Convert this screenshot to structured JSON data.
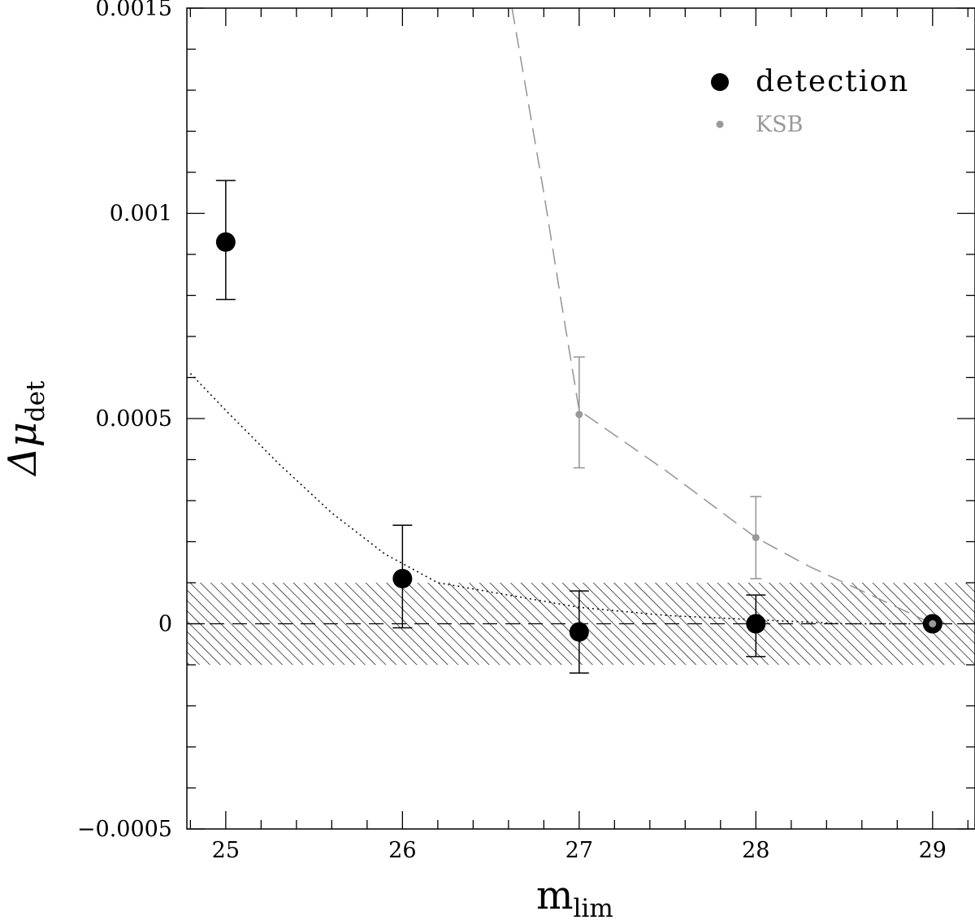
{
  "chart_data": {
    "type": "scatter",
    "xlabel": "m",
    "xlabel_sub": "lim",
    "ylabel": "Δμ",
    "ylabel_sub": "det",
    "xlim": [
      24.78,
      29.24
    ],
    "ylim": [
      -0.0005,
      0.0015
    ],
    "x_ticks": [
      25,
      26,
      27,
      28,
      29
    ],
    "x_tick_labels": [
      "25",
      "26",
      "27",
      "28",
      "29"
    ],
    "x_minor_step": 0.2,
    "y_ticks": [
      -0.0005,
      0,
      0.0005,
      0.001,
      0.0015
    ],
    "y_tick_labels": [
      "−0.0005",
      "0",
      "0.0005",
      "0.001",
      "0.0015"
    ],
    "y_minor_step": 0.0001,
    "grid": false,
    "legend_position": "top-right",
    "colors": {
      "detection": "#000000",
      "ksb": "#999999"
    },
    "series": [
      {
        "name": "detection",
        "marker": "large-filled-circle",
        "points": [
          {
            "x": 25,
            "y": 0.00093,
            "err_low": 0.00079,
            "err_high": 0.00108
          },
          {
            "x": 26,
            "y": 0.00011,
            "err_low": -1e-05,
            "err_high": 0.00024
          },
          {
            "x": 27,
            "y": -2e-05,
            "err_low": -0.00012,
            "err_high": 8e-05
          },
          {
            "x": 28,
            "y": 0.0,
            "err_low": -8e-05,
            "err_high": 7e-05
          },
          {
            "x": 29,
            "y": 0.0,
            "err_low": 0.0,
            "err_high": 0.0
          }
        ]
      },
      {
        "name": "KSB",
        "marker": "small-filled-circle",
        "points": [
          {
            "x": 27,
            "y": 0.00051,
            "err_low": 0.00038,
            "err_high": 0.00065
          },
          {
            "x": 28,
            "y": 0.00021,
            "err_low": 0.00011,
            "err_high": 0.00031
          },
          {
            "x": 29,
            "y": 0.0,
            "err_low": 0.0,
            "err_high": 0.0
          }
        ]
      }
    ],
    "curves": [
      {
        "style": "dashed-gray",
        "points": [
          [
            26.62,
            0.0015
          ],
          [
            26.8,
            0.00105
          ],
          [
            26.9,
            0.00078
          ],
          [
            27.0,
            0.00052
          ],
          [
            27.5,
            0.00037
          ],
          [
            28.0,
            0.00021
          ],
          [
            28.3,
            0.00014
          ],
          [
            28.6,
            8e-05
          ],
          [
            29.0,
            0.0
          ]
        ]
      },
      {
        "style": "dotted-black",
        "points": [
          [
            24.8,
            0.00061
          ],
          [
            25.0,
            0.00052
          ],
          [
            25.3,
            0.00039
          ],
          [
            25.6,
            0.00027
          ],
          [
            25.9,
            0.00017
          ],
          [
            26.2,
            0.0001
          ],
          [
            26.6,
            7e-05
          ],
          [
            27.0,
            4e-05
          ],
          [
            27.5,
            2e-05
          ],
          [
            28.0,
            1e-05
          ],
          [
            28.5,
            0.0
          ],
          [
            29.0,
            0.0
          ]
        ]
      }
    ],
    "band": {
      "y_min": -0.0001,
      "y_max": 0.0001,
      "pattern": "diagonal-hatch"
    },
    "reference_line": {
      "y": 0,
      "style": "dashed"
    }
  }
}
